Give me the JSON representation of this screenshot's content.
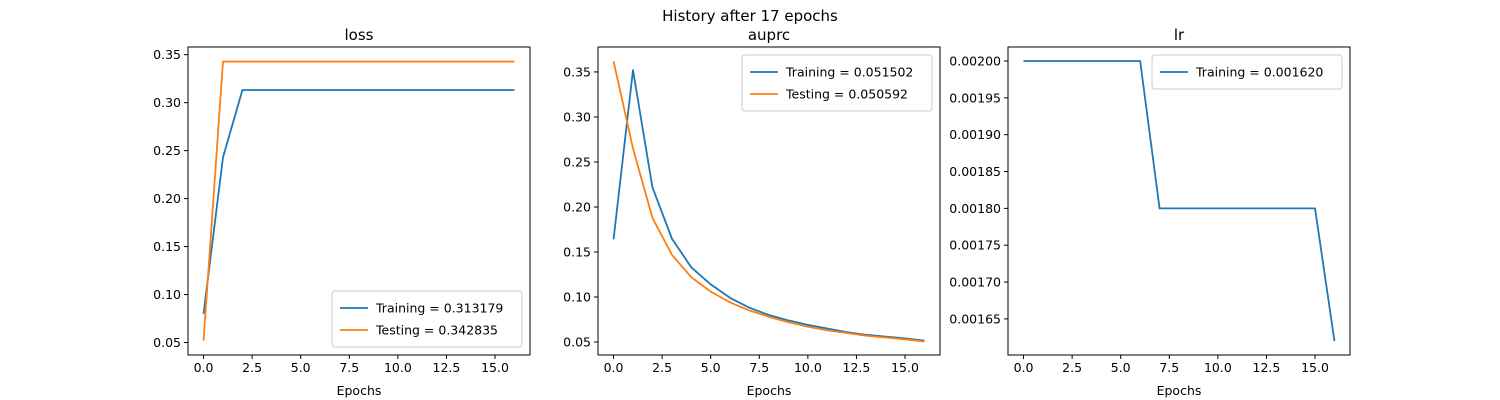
{
  "figure": {
    "suptitle": "History after 17 epochs"
  },
  "colors": {
    "training": "#1f77b4",
    "testing": "#ff7f0e"
  },
  "chart_data": [
    {
      "type": "line",
      "title": "loss",
      "xlabel": "Epochs",
      "ylabel": "",
      "xlim": [
        -0.8,
        16.8
      ],
      "ylim": [
        0.037,
        0.358
      ],
      "xticks": [
        0,
        2.5,
        5,
        7.5,
        10,
        12.5,
        15
      ],
      "xtick_labels": [
        "0.0",
        "2.5",
        "5.0",
        "7.5",
        "10.0",
        "12.5",
        "15.0"
      ],
      "yticks": [
        0.05,
        0.1,
        0.15,
        0.2,
        0.25,
        0.3,
        0.35
      ],
      "ytick_labels": [
        "0.05",
        "0.10",
        "0.15",
        "0.20",
        "0.25",
        "0.30",
        "0.35"
      ],
      "legend": "lower-right",
      "grid": false,
      "x": [
        0,
        1,
        2,
        3,
        4,
        5,
        6,
        7,
        8,
        9,
        10,
        11,
        12,
        13,
        14,
        15,
        16
      ],
      "series": [
        {
          "name": "Training = 0.313179",
          "color": "#1f77b4",
          "values": [
            0.08,
            0.243,
            0.313179,
            0.313179,
            0.313179,
            0.313179,
            0.313179,
            0.313179,
            0.313179,
            0.313179,
            0.313179,
            0.313179,
            0.313179,
            0.313179,
            0.313179,
            0.313179,
            0.313179
          ]
        },
        {
          "name": "Testing = 0.342835",
          "color": "#ff7f0e",
          "values": [
            0.052,
            0.342835,
            0.342835,
            0.342835,
            0.342835,
            0.342835,
            0.342835,
            0.342835,
            0.342835,
            0.342835,
            0.342835,
            0.342835,
            0.342835,
            0.342835,
            0.342835,
            0.342835,
            0.342835
          ]
        }
      ]
    },
    {
      "type": "line",
      "title": "auprc",
      "xlabel": "Epochs",
      "ylabel": "",
      "xlim": [
        -0.8,
        16.8
      ],
      "ylim": [
        0.0356,
        0.3777
      ],
      "xticks": [
        0,
        2.5,
        5,
        7.5,
        10,
        12.5,
        15
      ],
      "xtick_labels": [
        "0.0",
        "2.5",
        "5.0",
        "7.5",
        "10.0",
        "12.5",
        "15.0"
      ],
      "yticks": [
        0.05,
        0.1,
        0.15,
        0.2,
        0.25,
        0.3,
        0.35
      ],
      "ytick_labels": [
        "0.05",
        "0.10",
        "0.15",
        "0.20",
        "0.25",
        "0.30",
        "0.35"
      ],
      "legend": "upper-right",
      "grid": false,
      "x": [
        0,
        1,
        2,
        3,
        4,
        5,
        6,
        7,
        8,
        9,
        10,
        11,
        12,
        13,
        14,
        15,
        16
      ],
      "series": [
        {
          "name": "Training = 0.051502",
          "color": "#1f77b4",
          "values": [
            0.164,
            0.352,
            0.222,
            0.165,
            0.133,
            0.114,
            0.099,
            0.088,
            0.08,
            0.074,
            0.069,
            0.065,
            0.061,
            0.058,
            0.056,
            0.054,
            0.051502
          ]
        },
        {
          "name": "Testing = 0.050592",
          "color": "#ff7f0e",
          "values": [
            0.362,
            0.265,
            0.188,
            0.147,
            0.122,
            0.106,
            0.094,
            0.085,
            0.078,
            0.072,
            0.067,
            0.063,
            0.06,
            0.057,
            0.055,
            0.053,
            0.050592
          ]
        }
      ]
    },
    {
      "type": "line",
      "title": "lr",
      "xlabel": "Epochs",
      "ylabel": "",
      "xlim": [
        -0.8,
        16.8
      ],
      "ylim": [
        0.001601,
        0.002019
      ],
      "xticks": [
        0,
        2.5,
        5,
        7.5,
        10,
        12.5,
        15
      ],
      "xtick_labels": [
        "0.0",
        "2.5",
        "5.0",
        "7.5",
        "10.0",
        "12.5",
        "15.0"
      ],
      "yticks": [
        0.00165,
        0.0017,
        0.00175,
        0.0018,
        0.00185,
        0.0019,
        0.00195,
        0.002
      ],
      "ytick_labels": [
        "0.00165",
        "0.00170",
        "0.00175",
        "0.00180",
        "0.00185",
        "0.00190",
        "0.00195",
        "0.00200"
      ],
      "legend": "upper-right",
      "grid": false,
      "x": [
        0,
        1,
        2,
        3,
        4,
        5,
        6,
        7,
        8,
        9,
        10,
        11,
        12,
        13,
        14,
        15,
        16
      ],
      "series": [
        {
          "name": "Training = 0.001620",
          "color": "#1f77b4",
          "values": [
            0.002,
            0.002,
            0.002,
            0.002,
            0.002,
            0.002,
            0.002,
            0.0018,
            0.0018,
            0.0018,
            0.0018,
            0.0018,
            0.0018,
            0.0018,
            0.0018,
            0.0018,
            0.00162
          ]
        }
      ]
    }
  ]
}
